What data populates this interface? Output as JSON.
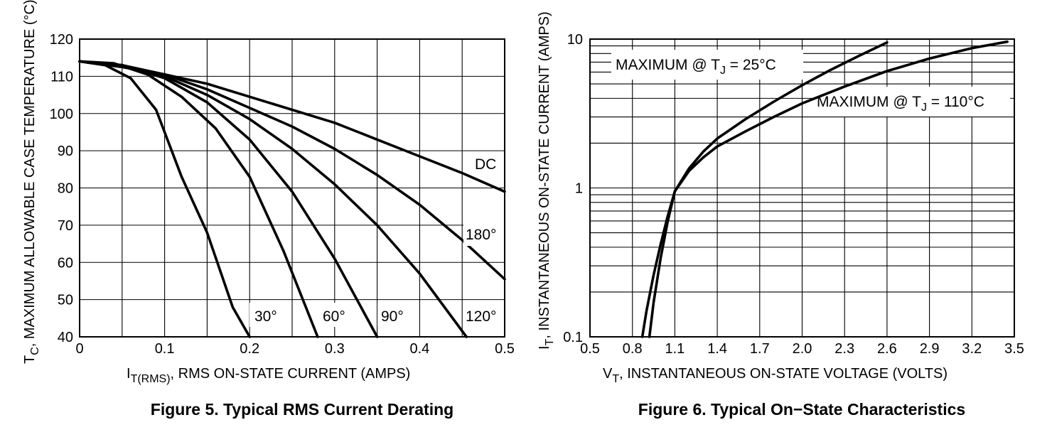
{
  "chart_data": [
    {
      "type": "line",
      "caption": "Figure 5. Typical RMS Current Derating",
      "xlabel": {
        "main": "I",
        "sub": "T(RMS)",
        "rest": ", RMS ON-STATE CURRENT (AMPS)"
      },
      "ylabel": {
        "main": "T",
        "sub": "C",
        "rest": ", MAXIMUM ALLOWABLE CASE TEMPERATURE (°C)"
      },
      "xlim": [
        0,
        0.5
      ],
      "ylim": [
        40,
        120
      ],
      "xticks": [
        "0",
        "0.1",
        "0.2",
        "0.3",
        "0.4",
        "0.5"
      ],
      "yticks": [
        "40",
        "50",
        "60",
        "70",
        "80",
        "90",
        "100",
        "110",
        "120"
      ],
      "grid": true,
      "series": [
        {
          "name": "30°",
          "x": [
            0,
            0.03,
            0.06,
            0.09,
            0.12,
            0.15,
            0.18,
            0.2
          ],
          "y": [
            114,
            113,
            109.5,
            101,
            83,
            68,
            48,
            40
          ]
        },
        {
          "name": "60°",
          "x": [
            0,
            0.04,
            0.08,
            0.12,
            0.16,
            0.2,
            0.24,
            0.28
          ],
          "y": [
            114,
            113.5,
            110.5,
            104.5,
            96,
            83,
            63,
            40
          ]
        },
        {
          "name": "90°",
          "x": [
            0,
            0.05,
            0.1,
            0.15,
            0.2,
            0.25,
            0.3,
            0.35
          ],
          "y": [
            114,
            113,
            109.5,
            103,
            93,
            79,
            61,
            40
          ]
        },
        {
          "name": "120°",
          "x": [
            0,
            0.05,
            0.1,
            0.15,
            0.2,
            0.25,
            0.3,
            0.35,
            0.4,
            0.455
          ],
          "y": [
            114,
            113,
            110,
            105,
            98.5,
            90.5,
            81,
            70,
            57,
            40
          ]
        },
        {
          "name": "180°",
          "x": [
            0,
            0.05,
            0.1,
            0.15,
            0.2,
            0.25,
            0.3,
            0.35,
            0.4,
            0.45,
            0.5
          ],
          "y": [
            114,
            113,
            110.5,
            106.5,
            101.5,
            96.5,
            90.5,
            83.5,
            75.5,
            66,
            55.5
          ]
        },
        {
          "name": "DC",
          "x": [
            0,
            0.05,
            0.1,
            0.15,
            0.2,
            0.25,
            0.3,
            0.35,
            0.4,
            0.45,
            0.5
          ],
          "y": [
            114,
            112.5,
            110.5,
            108,
            104.5,
            101,
            97.5,
            93,
            88.5,
            84,
            79
          ]
        }
      ],
      "annotations": [
        "30°",
        "60°",
        "90°",
        "120°",
        "180°",
        "DC"
      ]
    },
    {
      "type": "line",
      "caption": "Figure 6. Typical On−State Characteristics",
      "xlabel": {
        "main": "V",
        "sub": "T",
        "rest": ", INSTANTANEOUS ON-STATE VOLTAGE (VOLTS)"
      },
      "ylabel": {
        "main": "I",
        "sub": "T",
        "rest": ", INSTANTANEOUS ON-STATE CURRENT (AMPS)"
      },
      "xlim": [
        0.5,
        3.5
      ],
      "ylim": [
        0.1,
        10
      ],
      "yscale": "log",
      "xticks": [
        "0.5",
        "0.8",
        "1.1",
        "1.4",
        "1.7",
        "2.0",
        "2.3",
        "2.6",
        "2.9",
        "3.2",
        "3.5"
      ],
      "yticks": [
        "0.1",
        "1",
        "10"
      ],
      "grid": true,
      "series": [
        {
          "name": "MAXIMUM @ TJ = 25°C",
          "x": [
            0.87,
            0.9,
            0.95,
            1.0,
            1.05,
            1.1,
            1.2,
            1.3,
            1.4,
            1.6,
            1.8,
            2.0,
            2.2,
            2.4,
            2.6
          ],
          "y": [
            0.1,
            0.15,
            0.26,
            0.42,
            0.65,
            0.95,
            1.35,
            1.75,
            2.15,
            2.9,
            3.8,
            4.9,
            6.2,
            7.7,
            9.5
          ]
        },
        {
          "name": "MAXIMUM @ TJ = 110°C",
          "x": [
            0.92,
            0.95,
            1.0,
            1.05,
            1.1,
            1.2,
            1.3,
            1.4,
            1.6,
            1.8,
            2.0,
            2.3,
            2.6,
            2.9,
            3.2,
            3.45
          ],
          "y": [
            0.1,
            0.17,
            0.34,
            0.6,
            0.95,
            1.3,
            1.6,
            1.9,
            2.4,
            3.0,
            3.7,
            4.8,
            6.1,
            7.4,
            8.7,
            9.6
          ]
        }
      ],
      "annotations": [
        {
          "main": "MAXIMUM @ T",
          "sub": "J",
          "rest": " = 25°C"
        },
        {
          "main": "MAXIMUM @ T",
          "sub": "J",
          "rest": " = 110°C"
        }
      ]
    }
  ]
}
